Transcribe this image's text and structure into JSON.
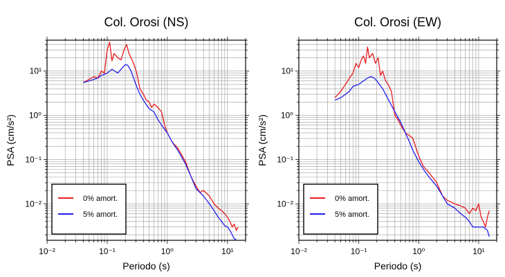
{
  "chart_data": [
    {
      "type": "line",
      "title": "Col. Orosi (NS)",
      "xlabel": "Periodo (s)",
      "ylabel": "PSA (cm/s²)",
      "xscale": "log",
      "yscale": "log",
      "xlim": [
        0.01,
        20
      ],
      "ylim": [
        0.0015,
        50
      ],
      "grid": true,
      "legend": "bottom-left",
      "x_tick_labels": [
        "10⁻²",
        "10⁻¹",
        "10⁰",
        "10¹"
      ],
      "y_tick_labels": [
        "10⁻²",
        "10⁻¹",
        "10⁰",
        "10¹"
      ],
      "series": [
        {
          "name": "0% amort.",
          "color": "#e8191d",
          "x": [
            0.04,
            0.05,
            0.06,
            0.07,
            0.08,
            0.09,
            0.1,
            0.11,
            0.12,
            0.13,
            0.15,
            0.17,
            0.19,
            0.21,
            0.23,
            0.25,
            0.28,
            0.31,
            0.35,
            0.4,
            0.45,
            0.5,
            0.55,
            0.6,
            0.7,
            0.8,
            0.9,
            1.0,
            1.2,
            1.5,
            2.0,
            2.5,
            3.0,
            3.5,
            4.0,
            5.0,
            6.0,
            7.0,
            8.0,
            9.0,
            10.0,
            11.0,
            12.0,
            13.0,
            14.0,
            15.0
          ],
          "values": [
            5.5,
            6.5,
            7.5,
            7.0,
            10.0,
            9.0,
            30.0,
            45.0,
            17.0,
            25.0,
            20.0,
            18.0,
            30.0,
            40.0,
            25.0,
            20.0,
            14.0,
            9.0,
            4.0,
            3.0,
            2.2,
            2.0,
            1.5,
            1.8,
            1.5,
            1.2,
            0.6,
            0.4,
            0.25,
            0.18,
            0.09,
            0.04,
            0.025,
            0.018,
            0.02,
            0.015,
            0.01,
            0.008,
            0.007,
            0.006,
            0.005,
            0.004,
            0.003,
            0.0035,
            0.0025,
            0.003
          ]
        },
        {
          "name": "5% amort.",
          "color": "#1f1fe8",
          "x": [
            0.04,
            0.05,
            0.06,
            0.07,
            0.08,
            0.1,
            0.12,
            0.15,
            0.18,
            0.2,
            0.22,
            0.25,
            0.3,
            0.35,
            0.4,
            0.5,
            0.6,
            0.7,
            0.8,
            1.0,
            1.2,
            1.5,
            2.0,
            2.5,
            3.0,
            4.0,
            5.0,
            6.0,
            7.0,
            8.0,
            9.0,
            10.0,
            11.0,
            12.0,
            13.0,
            14.0
          ],
          "values": [
            5.5,
            6.0,
            6.5,
            7.0,
            8.0,
            9.0,
            11.0,
            9.0,
            12.0,
            14.0,
            13.5,
            10.0,
            5.0,
            3.0,
            2.2,
            1.4,
            1.2,
            0.8,
            0.6,
            0.4,
            0.25,
            0.16,
            0.08,
            0.04,
            0.022,
            0.015,
            0.01,
            0.007,
            0.005,
            0.004,
            0.0032,
            0.003,
            0.0025,
            0.002,
            0.0016,
            0.0016
          ]
        }
      ]
    },
    {
      "type": "line",
      "title": "Col. Orosi (EW)",
      "xlabel": "Periodo (s)",
      "ylabel": "PSA (cm/s²)",
      "xscale": "log",
      "yscale": "log",
      "xlim": [
        0.01,
        20
      ],
      "ylim": [
        0.0015,
        50
      ],
      "grid": true,
      "legend": "bottom-left",
      "x_tick_labels": [
        "10⁻²",
        "10⁻¹",
        "10⁰",
        "10¹"
      ],
      "y_tick_labels": [
        "10⁻²",
        "10⁻¹",
        "10⁰",
        "10¹"
      ],
      "series": [
        {
          "name": "0% amort.",
          "color": "#e8191d",
          "x": [
            0.04,
            0.05,
            0.06,
            0.07,
            0.08,
            0.09,
            0.1,
            0.11,
            0.12,
            0.13,
            0.14,
            0.15,
            0.17,
            0.19,
            0.21,
            0.23,
            0.25,
            0.28,
            0.31,
            0.35,
            0.4,
            0.45,
            0.5,
            0.6,
            0.7,
            0.8,
            1.0,
            1.2,
            1.5,
            2.0,
            2.5,
            3.0,
            4.0,
            5.0,
            6.0,
            7.0,
            8.0,
            9.0,
            10.0,
            11.0,
            12.0,
            13.0,
            14.0,
            15.0
          ],
          "values": [
            2.5,
            3.5,
            5.0,
            7.0,
            9.0,
            15.0,
            12.0,
            18.0,
            22.0,
            15.0,
            35.0,
            20.0,
            25.0,
            15.0,
            20.0,
            8.0,
            10.0,
            6.0,
            5.0,
            3.5,
            1.0,
            0.8,
            0.6,
            0.4,
            0.35,
            0.3,
            0.12,
            0.07,
            0.05,
            0.03,
            0.015,
            0.012,
            0.01,
            0.009,
            0.008,
            0.006,
            0.008,
            0.007,
            0.01,
            0.005,
            0.004,
            0.003,
            0.005,
            0.007
          ]
        },
        {
          "name": "5% amort.",
          "color": "#1f1fe8",
          "x": [
            0.04,
            0.05,
            0.06,
            0.07,
            0.08,
            0.1,
            0.12,
            0.14,
            0.16,
            0.18,
            0.2,
            0.25,
            0.3,
            0.4,
            0.5,
            0.6,
            0.7,
            0.8,
            1.0,
            1.2,
            1.5,
            2.0,
            2.5,
            3.0,
            4.0,
            5.0,
            6.0,
            7.0,
            8.0,
            9.0,
            10.0,
            12.0,
            14.0,
            15.0
          ],
          "values": [
            2.2,
            2.5,
            3.0,
            3.5,
            4.5,
            5.0,
            6.0,
            7.0,
            7.5,
            7.0,
            6.0,
            4.0,
            2.5,
            1.2,
            0.7,
            0.4,
            0.25,
            0.16,
            0.09,
            0.06,
            0.04,
            0.025,
            0.015,
            0.01,
            0.008,
            0.006,
            0.005,
            0.004,
            0.003,
            0.003,
            0.003,
            0.003,
            0.0025,
            0.0018
          ]
        }
      ]
    }
  ]
}
